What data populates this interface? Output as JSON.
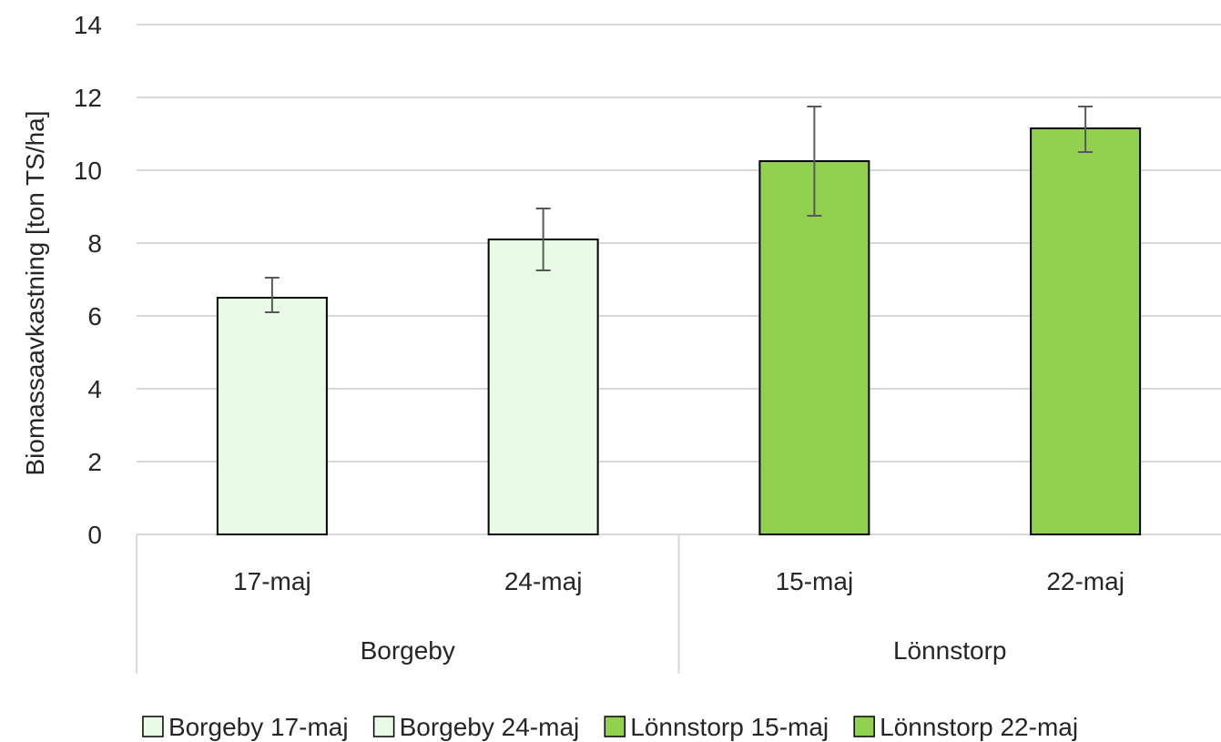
{
  "chart_data": {
    "type": "bar",
    "title": "",
    "ylabel": "Biomassaavkastning [ton TS/ha]",
    "xlabel": "",
    "ylim": [
      0,
      14
    ],
    "ytick_step": 2,
    "grid": true,
    "legend_position": "bottom",
    "groups": [
      {
        "label": "Borgeby",
        "categories": [
          "17-maj",
          "24-maj"
        ]
      },
      {
        "label": "Lönnstorp",
        "categories": [
          "15-maj",
          "22-maj"
        ]
      }
    ],
    "series": [
      {
        "name": "Borgeby 17-maj",
        "group": "Borgeby",
        "category": "17-maj",
        "value": 6.5,
        "error_low": 6.1,
        "error_high": 7.05,
        "color": "#E9FBE6"
      },
      {
        "name": "Borgeby 24-maj",
        "group": "Borgeby",
        "category": "24-maj",
        "value": 8.1,
        "error_low": 7.25,
        "error_high": 8.95,
        "color": "#E9FBE6"
      },
      {
        "name": "Lönnstorp 15-maj",
        "group": "Lönnstorp",
        "category": "15-maj",
        "value": 10.25,
        "error_low": 8.75,
        "error_high": 11.75,
        "color": "#92D050"
      },
      {
        "name": "Lönnstorp 22-maj",
        "group": "Lönnstorp",
        "category": "22-maj",
        "value": 11.15,
        "error_low": 10.5,
        "error_high": 11.75,
        "color": "#92D050"
      }
    ],
    "colors": {
      "gridline": "#D9D9D9",
      "bar_border": "#000000",
      "error_bar": "#595959",
      "text": "#262626"
    }
  }
}
